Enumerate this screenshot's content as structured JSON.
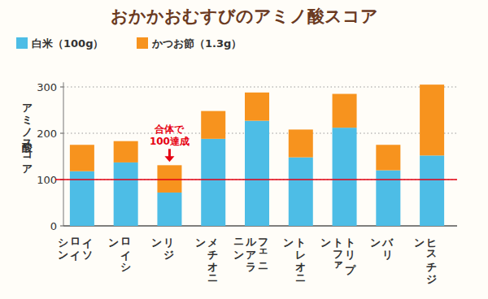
{
  "chart_data": {
    "type": "bar",
    "title": "おかかおむすびのアミノ酸スコア",
    "y_label": "アミノ酸スコア",
    "categories": [
      "イソロイシン",
      "ロイシン",
      "リジン",
      "メチオニン",
      "フェニルアラニン",
      "トレオニン",
      "トリプトファン",
      "バリン",
      "ヒスチジン"
    ],
    "series": [
      {
        "name": "白米（100g）",
        "color": "#4dbde6",
        "values": [
          118,
          137,
          72,
          188,
          227,
          148,
          212,
          120,
          152
        ]
      },
      {
        "name": "かつお節（1.3g）",
        "color": "#f7931e",
        "values": [
          57,
          46,
          59,
          60,
          61,
          60,
          73,
          55,
          153
        ]
      }
    ],
    "stacked": true,
    "ylim": [
      0,
      310
    ],
    "yticks": [
      0,
      100,
      200,
      300
    ],
    "grid": true,
    "legend": "top-left",
    "reference_line": {
      "value": 100,
      "color": "#e60012"
    },
    "annotation": {
      "lines": [
        "合体で",
        "100達成"
      ],
      "category": "リジン",
      "color": "#e60012"
    }
  }
}
